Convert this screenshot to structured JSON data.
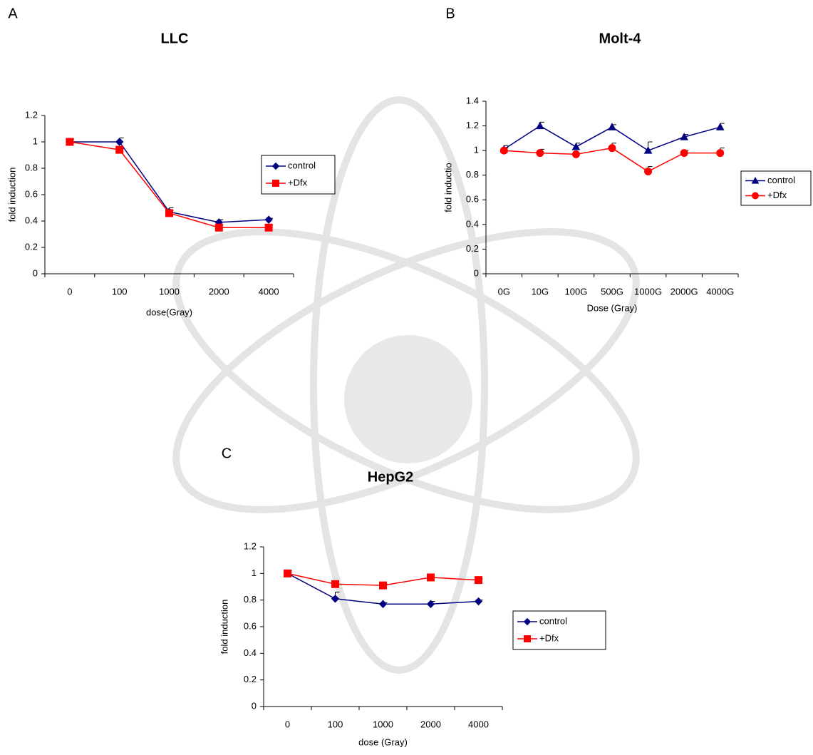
{
  "chart_data": [
    {
      "type": "line",
      "panel": "A",
      "title": "LLC",
      "x_label": "dose(Gray)",
      "y_label": "fold induction",
      "categories": [
        "0",
        "100",
        "1000",
        "2000",
        "4000"
      ],
      "series": [
        {
          "name": "control",
          "color": "#000080",
          "marker": "diamond",
          "values": [
            1,
            1,
            0.47,
            0.39,
            0.41
          ],
          "errors": [
            0,
            0.03,
            0.03,
            0.02,
            0.01
          ]
        },
        {
          "name": "+Dfx",
          "color": "#ff0000",
          "marker": "square",
          "values": [
            1,
            0.94,
            0.46,
            0.35,
            0.35
          ],
          "errors": [
            0.02,
            0.01,
            0.02,
            0.02,
            0.02
          ]
        }
      ],
      "ylim": [
        0,
        1.2
      ],
      "yticks": [
        0,
        0.2,
        0.4,
        0.6,
        0.8,
        1,
        1.2
      ],
      "legend": "right"
    },
    {
      "type": "line",
      "panel": "B",
      "title": "Molt-4",
      "x_label": "Dose (Gray)",
      "y_label": "fold inductio",
      "categories": [
        "0G",
        "10G",
        "100G",
        "500G",
        "1000G",
        "2000G",
        "4000G"
      ],
      "series": [
        {
          "name": "control",
          "color": "#000080",
          "marker": "triangle",
          "values": [
            1.01,
            1.2,
            1.03,
            1.19,
            1.0,
            1.11,
            1.19
          ],
          "errors": [
            0.03,
            0.03,
            0.03,
            0.02,
            0.07,
            0.02,
            0.03
          ]
        },
        {
          "name": "+Dfx",
          "color": "#ff0000",
          "marker": "circle",
          "values": [
            1.0,
            0.98,
            0.97,
            1.02,
            0.83,
            0.98,
            0.98
          ],
          "errors": [
            0.02,
            0.03,
            0,
            0.04,
            0.04,
            0.02,
            0.04
          ]
        }
      ],
      "ylim": [
        0,
        1.4
      ],
      "yticks": [
        0,
        0.2,
        0.4,
        0.6,
        0.8,
        1,
        1.2,
        1.4
      ],
      "legend": "right"
    },
    {
      "type": "line",
      "panel": "C",
      "title": "HepG2",
      "x_label": "dose (Gray)",
      "y_label": "fold induction",
      "categories": [
        "0",
        "100",
        "1000",
        "2000",
        "4000"
      ],
      "series": [
        {
          "name": "control",
          "color": "#000080",
          "marker": "diamond",
          "values": [
            1.0,
            0.81,
            0.77,
            0.77,
            0.79
          ],
          "errors": [
            0.02,
            0.05,
            0.01,
            0.02,
            0.01
          ]
        },
        {
          "name": "+Dfx",
          "color": "#ff0000",
          "marker": "square",
          "values": [
            1.0,
            0.92,
            0.91,
            0.97,
            0.95
          ],
          "errors": [
            0.01,
            0,
            0.01,
            0,
            0.01
          ]
        }
      ],
      "ylim": [
        0,
        1.2
      ],
      "yticks": [
        0,
        0.2,
        0.4,
        0.6,
        0.8,
        1,
        1.2
      ],
      "legend": "right"
    }
  ]
}
